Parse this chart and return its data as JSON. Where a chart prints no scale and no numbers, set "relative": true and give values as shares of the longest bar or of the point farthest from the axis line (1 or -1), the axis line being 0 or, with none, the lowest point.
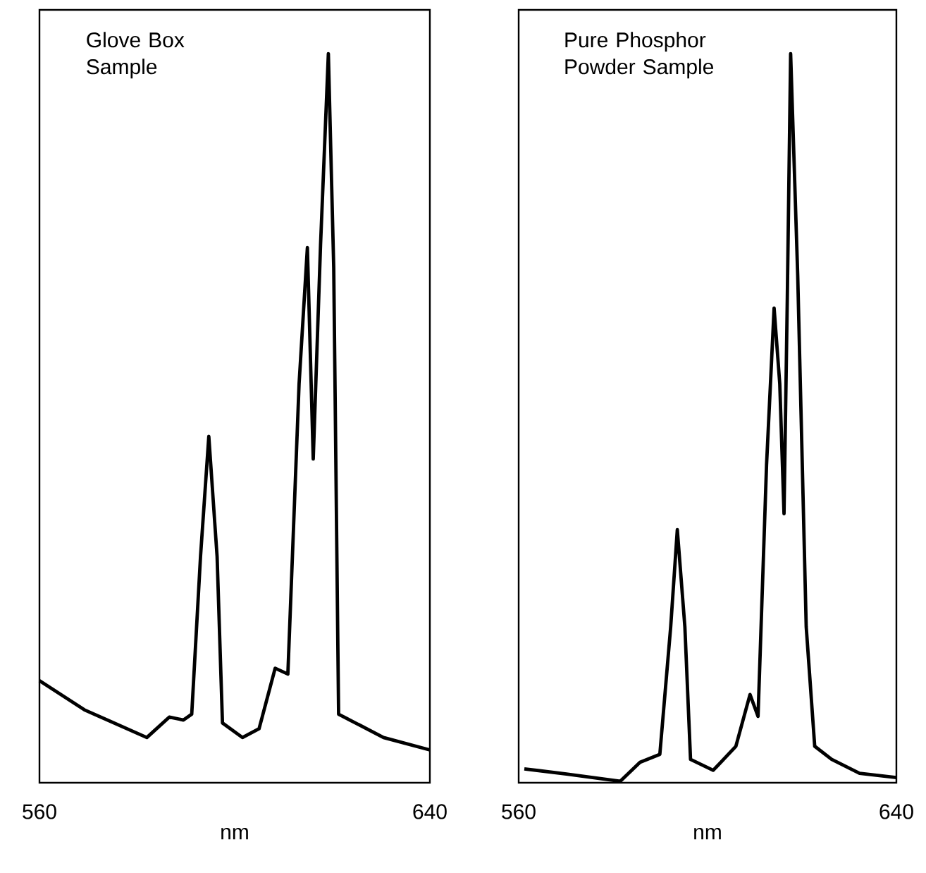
{
  "chart_data": [
    {
      "type": "line",
      "relative": true,
      "title": "Glove Box Sample",
      "xlabel": "nm",
      "xlim": [
        560,
        640
      ],
      "xticks": [
        560,
        640
      ],
      "series": [
        {
          "color": "#000000",
          "x": [
            560,
            569.2,
            582,
            586.6,
            589.5,
            591.2,
            593,
            594.7,
            596.4,
            597.5,
            601.6,
            605,
            608.3,
            610.9,
            613.2,
            614.9,
            616.1,
            617.6,
            619.2,
            620.3,
            621.3,
            623.6,
            630.5,
            640
          ],
          "values": [
            0.14,
            0.1,
            0.062,
            0.09,
            0.086,
            0.094,
            0.31,
            0.475,
            0.31,
            0.082,
            0.062,
            0.074,
            0.157,
            0.149,
            0.547,
            0.734,
            0.444,
            0.738,
            1.0,
            0.706,
            0.094,
            0.086,
            0.062,
            0.045
          ]
        }
      ]
    },
    {
      "type": "line",
      "relative": true,
      "title": "Pure Phosphor Powder Sample",
      "xlabel": "nm",
      "xlim": [
        560,
        640
      ],
      "xticks": [
        560,
        640
      ],
      "series": [
        {
          "color": "#000000",
          "x": [
            561.2,
            570.1,
            581.5,
            585.7,
            589.9,
            592.2,
            593.6,
            595.2,
            596.4,
            601.2,
            606,
            609,
            610.7,
            612.5,
            614.1,
            615.3,
            616.2,
            616.9,
            617.6,
            619.1,
            620.9,
            622.7,
            626.3,
            632.2,
            640
          ],
          "values": [
            0.019,
            0.012,
            0.002,
            0.028,
            0.039,
            0.214,
            0.347,
            0.214,
            0.032,
            0.017,
            0.05,
            0.121,
            0.091,
            0.436,
            0.651,
            0.547,
            0.369,
            0.666,
            1.0,
            0.696,
            0.214,
            0.05,
            0.032,
            0.013,
            0.007
          ]
        }
      ]
    }
  ]
}
